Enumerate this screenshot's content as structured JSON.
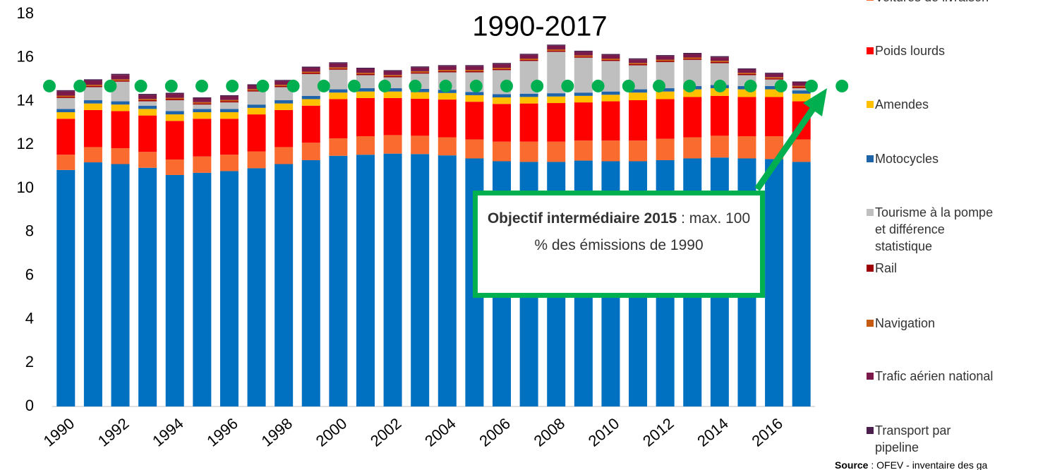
{
  "chart_data": {
    "type": "bar",
    "stacked": true,
    "title": "1990-2017",
    "categories": [
      "1990",
      null,
      "1992",
      null,
      "1994",
      null,
      "1996",
      null,
      "1998",
      null,
      "2000",
      null,
      "2002",
      null,
      "2004",
      null,
      "2006",
      null,
      "2008",
      null,
      "2010",
      null,
      "2012",
      null,
      "2014",
      null,
      "2016",
      null
    ],
    "ylim": [
      0,
      18
    ],
    "yticks": [
      0,
      2,
      4,
      6,
      8,
      10,
      12,
      14,
      16,
      18
    ],
    "grid": false,
    "target": 14.7,
    "target_color": "#00b050",
    "annotation": {
      "bold": "Objectif intermédiaire 2015",
      "text": " : max. 100 % des émissions de 1990"
    },
    "source": {
      "bold": "Source",
      "text": " : OFEV - inventaire des ga"
    },
    "series": [
      {
        "color": "#0070c0",
        "values": [
          10.85,
          11.2,
          11.12,
          10.95,
          10.62,
          10.72,
          10.8,
          10.93,
          11.12,
          11.3,
          11.5,
          11.55,
          11.6,
          11.58,
          11.52,
          11.38,
          11.25,
          11.22,
          11.22,
          11.28,
          11.25,
          11.25,
          11.3,
          11.38,
          11.42,
          11.38,
          11.35,
          11.22
        ]
      },
      {
        "name": "Voitures de livraison",
        "color": "#f96b2e",
        "values": [
          0.7,
          0.7,
          0.73,
          0.73,
          0.71,
          0.75,
          0.75,
          0.77,
          0.78,
          0.8,
          0.8,
          0.85,
          0.85,
          0.84,
          0.83,
          0.87,
          0.9,
          0.93,
          0.93,
          0.92,
          0.95,
          0.95,
          0.98,
          0.97,
          1.0,
          1.02,
          1.05,
          1.03
        ]
      },
      {
        "name": "Poids lourds",
        "color": "#ff0000",
        "values": [
          1.65,
          1.7,
          1.7,
          1.67,
          1.77,
          1.73,
          1.65,
          1.7,
          1.7,
          1.7,
          1.8,
          1.75,
          1.7,
          1.7,
          1.73,
          1.73,
          1.73,
          1.75,
          1.77,
          1.75,
          1.8,
          1.85,
          1.82,
          1.85,
          1.83,
          1.8,
          1.8,
          1.75
        ]
      },
      {
        "name": "Amendes",
        "color": "#ffc000",
        "values": [
          0.3,
          0.3,
          0.3,
          0.3,
          0.3,
          0.3,
          0.3,
          0.3,
          0.3,
          0.3,
          0.3,
          0.3,
          0.3,
          0.3,
          0.3,
          0.3,
          0.3,
          0.3,
          0.3,
          0.3,
          0.3,
          0.35,
          0.35,
          0.35,
          0.35,
          0.35,
          0.35,
          0.35
        ]
      },
      {
        "name": "Motocycles",
        "color": "#1f64a8",
        "values": [
          0.15,
          0.15,
          0.15,
          0.15,
          0.15,
          0.15,
          0.15,
          0.15,
          0.15,
          0.15,
          0.15,
          0.15,
          0.15,
          0.15,
          0.15,
          0.15,
          0.15,
          0.15,
          0.15,
          0.15,
          0.15,
          0.15,
          0.15,
          0.15,
          0.15,
          0.15,
          0.15,
          0.15
        ]
      },
      {
        "name": "Tourisme à la pompe et différence statistique",
        "color": "#bfbfbf",
        "values": [
          0.5,
          0.6,
          0.9,
          0.2,
          0.5,
          0.2,
          0.3,
          0.6,
          0.6,
          1.0,
          0.9,
          0.6,
          0.5,
          0.7,
          0.8,
          0.9,
          1.1,
          1.5,
          1.9,
          1.6,
          1.4,
          1.1,
          1.2,
          1.2,
          1.0,
          0.5,
          0.3,
          0.1
        ]
      },
      {
        "name": "Rail",
        "color": "#9c0006",
        "values": [
          0.05,
          0.05,
          0.05,
          0.05,
          0.05,
          0.05,
          0.05,
          0.05,
          0.05,
          0.05,
          0.05,
          0.05,
          0.05,
          0.05,
          0.05,
          0.05,
          0.05,
          0.05,
          0.05,
          0.05,
          0.05,
          0.05,
          0.05,
          0.05,
          0.05,
          0.05,
          0.05,
          0.05
        ]
      },
      {
        "name": "Navigation",
        "color": "#c55a11",
        "values": [
          0.06,
          0.06,
          0.06,
          0.06,
          0.06,
          0.06,
          0.06,
          0.06,
          0.06,
          0.06,
          0.06,
          0.06,
          0.06,
          0.06,
          0.06,
          0.06,
          0.06,
          0.06,
          0.06,
          0.06,
          0.06,
          0.06,
          0.06,
          0.06,
          0.06,
          0.06,
          0.06,
          0.06
        ]
      },
      {
        "name": "Trafic aérien national",
        "color": "#7b1a4a",
        "values": [
          0.2,
          0.2,
          0.2,
          0.18,
          0.18,
          0.17,
          0.17,
          0.17,
          0.17,
          0.18,
          0.18,
          0.18,
          0.17,
          0.17,
          0.17,
          0.17,
          0.17,
          0.17,
          0.17,
          0.16,
          0.16,
          0.16,
          0.16,
          0.16,
          0.16,
          0.15,
          0.15,
          0.15
        ]
      },
      {
        "name": "Transport par pipeline",
        "color": "#4b1e4e",
        "values": [
          0.05,
          0.05,
          0.05,
          0.05,
          0.05,
          0.05,
          0.05,
          0.05,
          0.05,
          0.05,
          0.05,
          0.05,
          0.05,
          0.05,
          0.05,
          0.05,
          0.05,
          0.05,
          0.05,
          0.05,
          0.05,
          0.05,
          0.05,
          0.05,
          0.05,
          0.05,
          0.05,
          0.05
        ]
      }
    ]
  }
}
